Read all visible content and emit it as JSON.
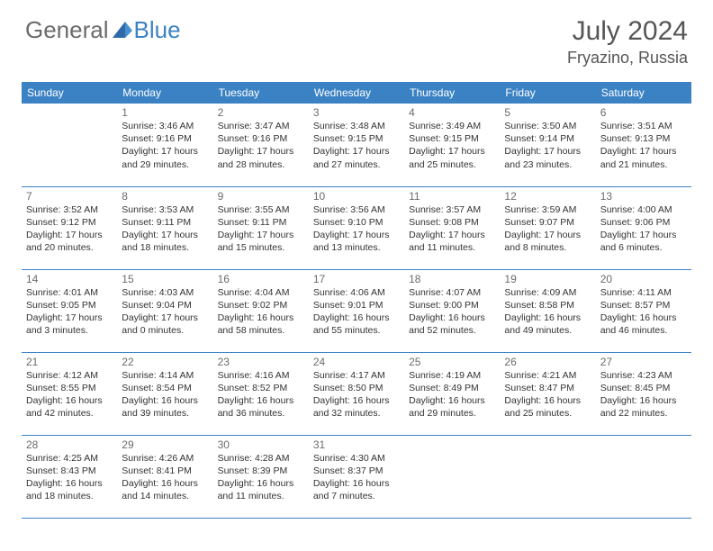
{
  "brand": {
    "word1": "General",
    "word2": "Blue"
  },
  "title": {
    "month": "July 2024",
    "location": "Fryazino, Russia"
  },
  "colors": {
    "header_bg": "#3b82c4",
    "header_text": "#ffffff",
    "border": "#3b82c4",
    "page_bg": "#ffffff",
    "text": "#333333",
    "muted": "#6b6b6b"
  },
  "dayHeaders": [
    "Sunday",
    "Monday",
    "Tuesday",
    "Wednesday",
    "Thursday",
    "Friday",
    "Saturday"
  ],
  "weeks": [
    [
      null,
      {
        "n": "1",
        "sr": "Sunrise: 3:46 AM",
        "ss": "Sunset: 9:16 PM",
        "d1": "Daylight: 17 hours",
        "d2": "and 29 minutes."
      },
      {
        "n": "2",
        "sr": "Sunrise: 3:47 AM",
        "ss": "Sunset: 9:16 PM",
        "d1": "Daylight: 17 hours",
        "d2": "and 28 minutes."
      },
      {
        "n": "3",
        "sr": "Sunrise: 3:48 AM",
        "ss": "Sunset: 9:15 PM",
        "d1": "Daylight: 17 hours",
        "d2": "and 27 minutes."
      },
      {
        "n": "4",
        "sr": "Sunrise: 3:49 AM",
        "ss": "Sunset: 9:15 PM",
        "d1": "Daylight: 17 hours",
        "d2": "and 25 minutes."
      },
      {
        "n": "5",
        "sr": "Sunrise: 3:50 AM",
        "ss": "Sunset: 9:14 PM",
        "d1": "Daylight: 17 hours",
        "d2": "and 23 minutes."
      },
      {
        "n": "6",
        "sr": "Sunrise: 3:51 AM",
        "ss": "Sunset: 9:13 PM",
        "d1": "Daylight: 17 hours",
        "d2": "and 21 minutes."
      }
    ],
    [
      {
        "n": "7",
        "sr": "Sunrise: 3:52 AM",
        "ss": "Sunset: 9:12 PM",
        "d1": "Daylight: 17 hours",
        "d2": "and 20 minutes."
      },
      {
        "n": "8",
        "sr": "Sunrise: 3:53 AM",
        "ss": "Sunset: 9:11 PM",
        "d1": "Daylight: 17 hours",
        "d2": "and 18 minutes."
      },
      {
        "n": "9",
        "sr": "Sunrise: 3:55 AM",
        "ss": "Sunset: 9:11 PM",
        "d1": "Daylight: 17 hours",
        "d2": "and 15 minutes."
      },
      {
        "n": "10",
        "sr": "Sunrise: 3:56 AM",
        "ss": "Sunset: 9:10 PM",
        "d1": "Daylight: 17 hours",
        "d2": "and 13 minutes."
      },
      {
        "n": "11",
        "sr": "Sunrise: 3:57 AM",
        "ss": "Sunset: 9:08 PM",
        "d1": "Daylight: 17 hours",
        "d2": "and 11 minutes."
      },
      {
        "n": "12",
        "sr": "Sunrise: 3:59 AM",
        "ss": "Sunset: 9:07 PM",
        "d1": "Daylight: 17 hours",
        "d2": "and 8 minutes."
      },
      {
        "n": "13",
        "sr": "Sunrise: 4:00 AM",
        "ss": "Sunset: 9:06 PM",
        "d1": "Daylight: 17 hours",
        "d2": "and 6 minutes."
      }
    ],
    [
      {
        "n": "14",
        "sr": "Sunrise: 4:01 AM",
        "ss": "Sunset: 9:05 PM",
        "d1": "Daylight: 17 hours",
        "d2": "and 3 minutes."
      },
      {
        "n": "15",
        "sr": "Sunrise: 4:03 AM",
        "ss": "Sunset: 9:04 PM",
        "d1": "Daylight: 17 hours",
        "d2": "and 0 minutes."
      },
      {
        "n": "16",
        "sr": "Sunrise: 4:04 AM",
        "ss": "Sunset: 9:02 PM",
        "d1": "Daylight: 16 hours",
        "d2": "and 58 minutes."
      },
      {
        "n": "17",
        "sr": "Sunrise: 4:06 AM",
        "ss": "Sunset: 9:01 PM",
        "d1": "Daylight: 16 hours",
        "d2": "and 55 minutes."
      },
      {
        "n": "18",
        "sr": "Sunrise: 4:07 AM",
        "ss": "Sunset: 9:00 PM",
        "d1": "Daylight: 16 hours",
        "d2": "and 52 minutes."
      },
      {
        "n": "19",
        "sr": "Sunrise: 4:09 AM",
        "ss": "Sunset: 8:58 PM",
        "d1": "Daylight: 16 hours",
        "d2": "and 49 minutes."
      },
      {
        "n": "20",
        "sr": "Sunrise: 4:11 AM",
        "ss": "Sunset: 8:57 PM",
        "d1": "Daylight: 16 hours",
        "d2": "and 46 minutes."
      }
    ],
    [
      {
        "n": "21",
        "sr": "Sunrise: 4:12 AM",
        "ss": "Sunset: 8:55 PM",
        "d1": "Daylight: 16 hours",
        "d2": "and 42 minutes."
      },
      {
        "n": "22",
        "sr": "Sunrise: 4:14 AM",
        "ss": "Sunset: 8:54 PM",
        "d1": "Daylight: 16 hours",
        "d2": "and 39 minutes."
      },
      {
        "n": "23",
        "sr": "Sunrise: 4:16 AM",
        "ss": "Sunset: 8:52 PM",
        "d1": "Daylight: 16 hours",
        "d2": "and 36 minutes."
      },
      {
        "n": "24",
        "sr": "Sunrise: 4:17 AM",
        "ss": "Sunset: 8:50 PM",
        "d1": "Daylight: 16 hours",
        "d2": "and 32 minutes."
      },
      {
        "n": "25",
        "sr": "Sunrise: 4:19 AM",
        "ss": "Sunset: 8:49 PM",
        "d1": "Daylight: 16 hours",
        "d2": "and 29 minutes."
      },
      {
        "n": "26",
        "sr": "Sunrise: 4:21 AM",
        "ss": "Sunset: 8:47 PM",
        "d1": "Daylight: 16 hours",
        "d2": "and 25 minutes."
      },
      {
        "n": "27",
        "sr": "Sunrise: 4:23 AM",
        "ss": "Sunset: 8:45 PM",
        "d1": "Daylight: 16 hours",
        "d2": "and 22 minutes."
      }
    ],
    [
      {
        "n": "28",
        "sr": "Sunrise: 4:25 AM",
        "ss": "Sunset: 8:43 PM",
        "d1": "Daylight: 16 hours",
        "d2": "and 18 minutes."
      },
      {
        "n": "29",
        "sr": "Sunrise: 4:26 AM",
        "ss": "Sunset: 8:41 PM",
        "d1": "Daylight: 16 hours",
        "d2": "and 14 minutes."
      },
      {
        "n": "30",
        "sr": "Sunrise: 4:28 AM",
        "ss": "Sunset: 8:39 PM",
        "d1": "Daylight: 16 hours",
        "d2": "and 11 minutes."
      },
      {
        "n": "31",
        "sr": "Sunrise: 4:30 AM",
        "ss": "Sunset: 8:37 PM",
        "d1": "Daylight: 16 hours",
        "d2": "and 7 minutes."
      },
      null,
      null,
      null
    ]
  ]
}
